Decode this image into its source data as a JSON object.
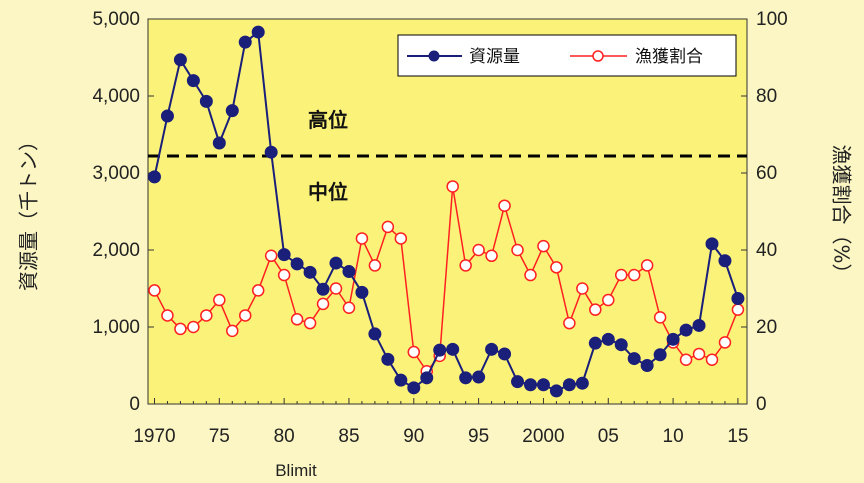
{
  "chart_data": {
    "type": "line",
    "colors": {
      "plot_bg": "#fbf27a",
      "page_bg": "#fbf6c3",
      "series1": "#1a1f7a",
      "series2": "#ff2020",
      "threshold": "#000000"
    },
    "x": [
      1970,
      1971,
      1972,
      1973,
      1974,
      1975,
      1976,
      1977,
      1978,
      1979,
      1980,
      1981,
      1982,
      1983,
      1984,
      1985,
      1986,
      1987,
      1988,
      1989,
      1990,
      1991,
      1992,
      1993,
      1994,
      1995,
      1996,
      1997,
      1998,
      1999,
      2000,
      2001,
      2002,
      2003,
      2004,
      2005,
      2006,
      2007,
      2008,
      2009,
      2010,
      2011,
      2012,
      2013,
      2014,
      2015
    ],
    "xlim": [
      1969.5,
      2015.7
    ],
    "x_ticks": [
      {
        "value": 1970,
        "label": "1970"
      },
      {
        "value": 1975,
        "label": "75"
      },
      {
        "value": 1980,
        "label": "80"
      },
      {
        "value": 1985,
        "label": "85"
      },
      {
        "value": 1990,
        "label": "90"
      },
      {
        "value": 1995,
        "label": "95"
      },
      {
        "value": 2000,
        "label": "2000"
      },
      {
        "value": 2005,
        "label": "05"
      },
      {
        "value": 2010,
        "label": "10"
      },
      {
        "value": 2015,
        "label": "15"
      }
    ],
    "xlabel": "",
    "x_annotation": "Blimit",
    "y_left": {
      "label": "資源量（千トン）",
      "ylim": [
        0,
        5000
      ],
      "ticks": [
        {
          "value": 0,
          "label": "0"
        },
        {
          "value": 1000,
          "label": "1,000"
        },
        {
          "value": 2000,
          "label": "2,000"
        },
        {
          "value": 3000,
          "label": "3,000"
        },
        {
          "value": 4000,
          "label": "4,000"
        },
        {
          "value": 5000,
          "label": "5,000"
        }
      ]
    },
    "y_right": {
      "label": "漁獲割合（%）",
      "ylim": [
        0,
        100
      ],
      "ticks": [
        {
          "value": 0,
          "label": "0"
        },
        {
          "value": 20,
          "label": "20"
        },
        {
          "value": 40,
          "label": "40"
        },
        {
          "value": 60,
          "label": "60"
        },
        {
          "value": 80,
          "label": "80"
        },
        {
          "value": 100,
          "label": "100"
        }
      ]
    },
    "series": [
      {
        "name": "資源量",
        "axis": "left",
        "marker": "filled-circle",
        "values": [
          2950,
          3740,
          4470,
          4200,
          3930,
          3390,
          3810,
          4700,
          4830,
          3270,
          1940,
          1820,
          1710,
          1490,
          1830,
          1720,
          1450,
          910,
          580,
          310,
          210,
          340,
          700,
          710,
          340,
          350,
          710,
          650,
          290,
          250,
          250,
          170,
          250,
          270,
          790,
          840,
          770,
          590,
          500,
          640,
          840,
          960,
          1020,
          2080,
          1860,
          1370
        ]
      },
      {
        "name": "漁獲割合",
        "axis": "right",
        "marker": "open-circle",
        "values": [
          29.5,
          23,
          19.5,
          20,
          23,
          27,
          19,
          23,
          29.5,
          38.5,
          33.5,
          22,
          21,
          26,
          30,
          25,
          43,
          36,
          46,
          43,
          13.5,
          8.5,
          12.5,
          56.5,
          36,
          40,
          38.5,
          51.5,
          40,
          33.5,
          41,
          35.5,
          21,
          30,
          24.5,
          27,
          33.5,
          33.5,
          36,
          22.5,
          16,
          11.5,
          13,
          11.5,
          16,
          24.5
        ]
      }
    ],
    "threshold": {
      "axis": "left",
      "value": 3220,
      "style": "dashed"
    },
    "zone_labels": [
      {
        "text": "高位"
      },
      {
        "text": "中位"
      }
    ],
    "legend_placement": "top-right",
    "grid": false
  }
}
